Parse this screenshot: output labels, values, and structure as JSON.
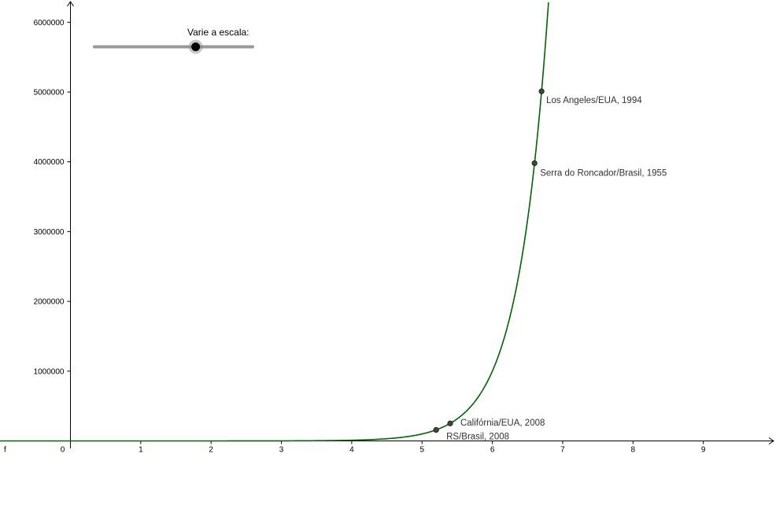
{
  "chart_data": {
    "type": "line",
    "function_name": "f",
    "xlim": [
      -1,
      10
    ],
    "ylim": [
      0,
      6000000
    ],
    "x_ticks": [
      "0",
      "1",
      "2",
      "3",
      "4",
      "5",
      "6",
      "7",
      "8",
      "9"
    ],
    "y_ticks": [
      "1000000",
      "2000000",
      "3000000",
      "4000000",
      "5000000",
      "6000000"
    ],
    "grid": false,
    "series": [
      {
        "color": "#006400",
        "form": "exponential",
        "base": 10,
        "exponent_scale": 1
      }
    ],
    "points": [
      {
        "label": "RS/Brasil, 2008",
        "x": 5.2,
        "y": 158000
      },
      {
        "label": "Califórnia/EUA, 2008",
        "x": 5.4,
        "y": 251000
      },
      {
        "label": "Serra do Roncador/Brasil, 1955",
        "x": 6.6,
        "y": 3980000
      },
      {
        "label": "Los Angeles/EUA, 1994",
        "x": 6.7,
        "y": 5010000
      }
    ]
  },
  "slider": {
    "label": "Varie a escala:",
    "value_fraction": 0.64
  },
  "colors": {
    "curve": "#006400",
    "point_fill": "#444444",
    "slider_track": "#9a9a9a",
    "slider_knob": "#000000"
  }
}
